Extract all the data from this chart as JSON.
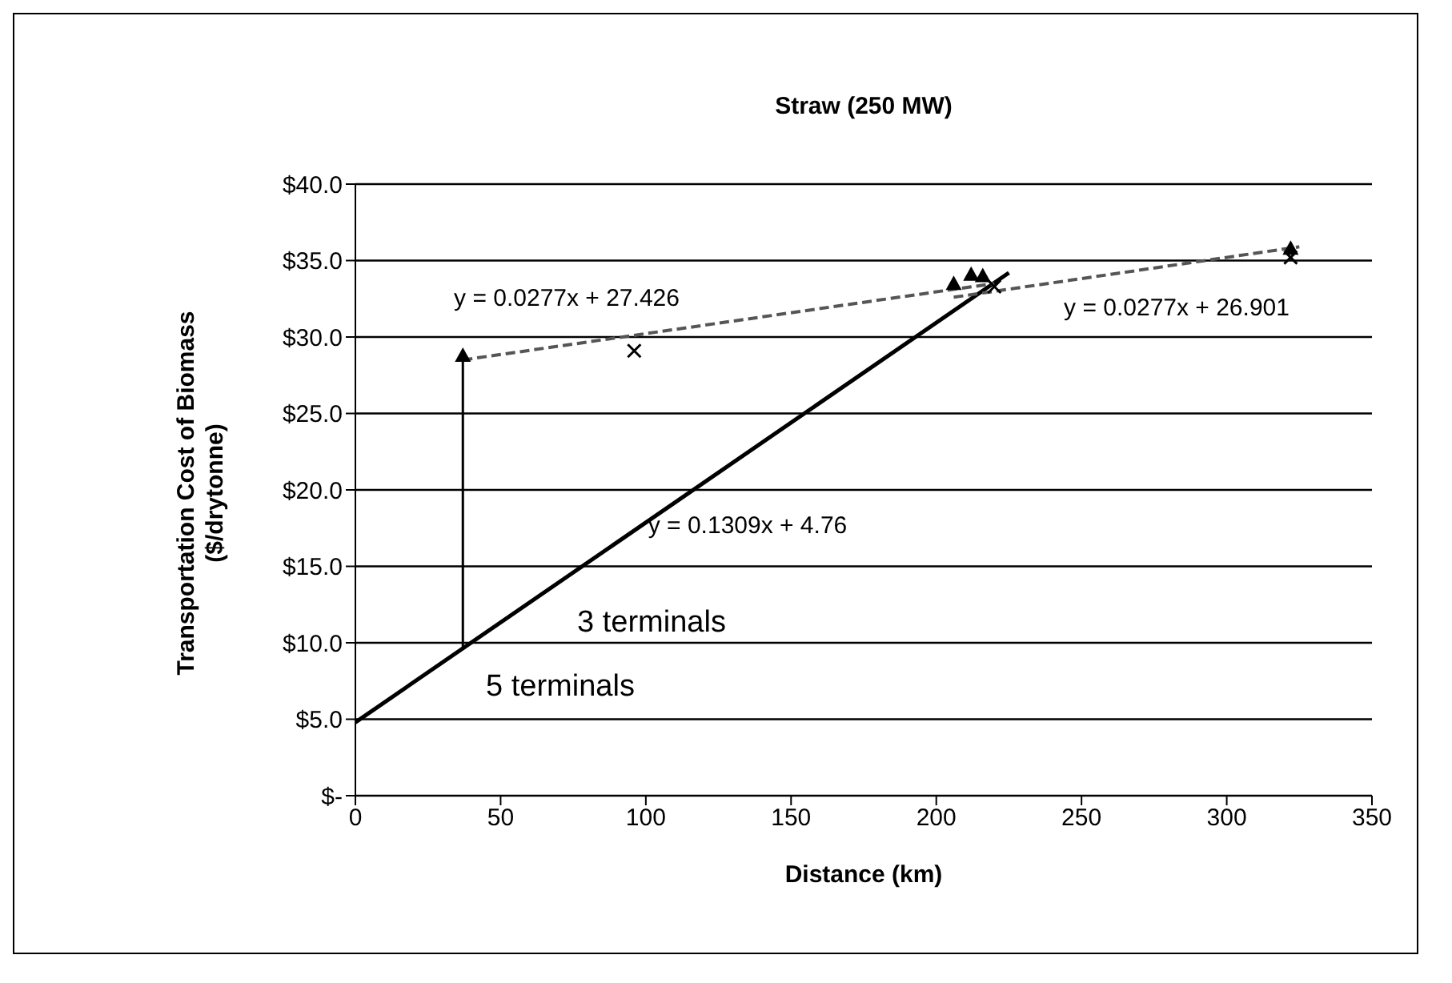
{
  "chart_data": {
    "type": "line",
    "title": "Straw (250 MW)",
    "xlabel": "Distance (km)",
    "ylabel": "Transportation Cost of Biomass ($/drytonne)",
    "xlim": [
      0,
      350
    ],
    "xticks": [
      0,
      50,
      100,
      150,
      200,
      250,
      300,
      350
    ],
    "ylim": [
      0,
      40
    ],
    "yticks": [
      {
        "value": 0,
        "label": "$-"
      },
      {
        "value": 5,
        "label": "$5.0"
      },
      {
        "value": 10,
        "label": "$10.0"
      },
      {
        "value": 15,
        "label": "$15.0"
      },
      {
        "value": 20,
        "label": "$20.0"
      },
      {
        "value": 25,
        "label": "$25.0"
      },
      {
        "value": 30,
        "label": "$30.0"
      },
      {
        "value": 35,
        "label": "$35.0"
      },
      {
        "value": 40,
        "label": "$40.0"
      }
    ],
    "grid": "y",
    "series": [
      {
        "color": "#000000",
        "x": [
          0,
          225
        ],
        "values": [
          4.8,
          34.2
        ],
        "line_style": "solid",
        "marker": "none"
      },
      {
        "color": "#555555",
        "x": [
          37,
          220
        ],
        "values": [
          28.5,
          33.5
        ],
        "line_style": "dashed",
        "marker": "none"
      },
      {
        "color": "#555555",
        "x": [
          206,
          325
        ],
        "values": [
          32.6,
          35.9
        ],
        "line_style": "dashed",
        "marker": "none"
      },
      {
        "type": "scatter",
        "color": "#000000",
        "x": [
          37,
          206,
          212,
          216,
          322
        ],
        "values": [
          28.8,
          33.5,
          34.1,
          34.0,
          35.8
        ],
        "errors": [
          [
            9.6,
            28.8
          ],
          null,
          null,
          null,
          null
        ],
        "marker": "triangle"
      },
      {
        "type": "scatter",
        "color": "#000000",
        "x": [
          96,
          220,
          322
        ],
        "values": [
          29.1,
          33.3,
          35.2
        ],
        "marker": "cross"
      }
    ],
    "annotations": [
      "y = 0.0277x + 27.426",
      "y = 0.0277x + 26.901",
      "y = 0.1309x + 4.76",
      "3 terminals",
      "5 terminals"
    ]
  }
}
